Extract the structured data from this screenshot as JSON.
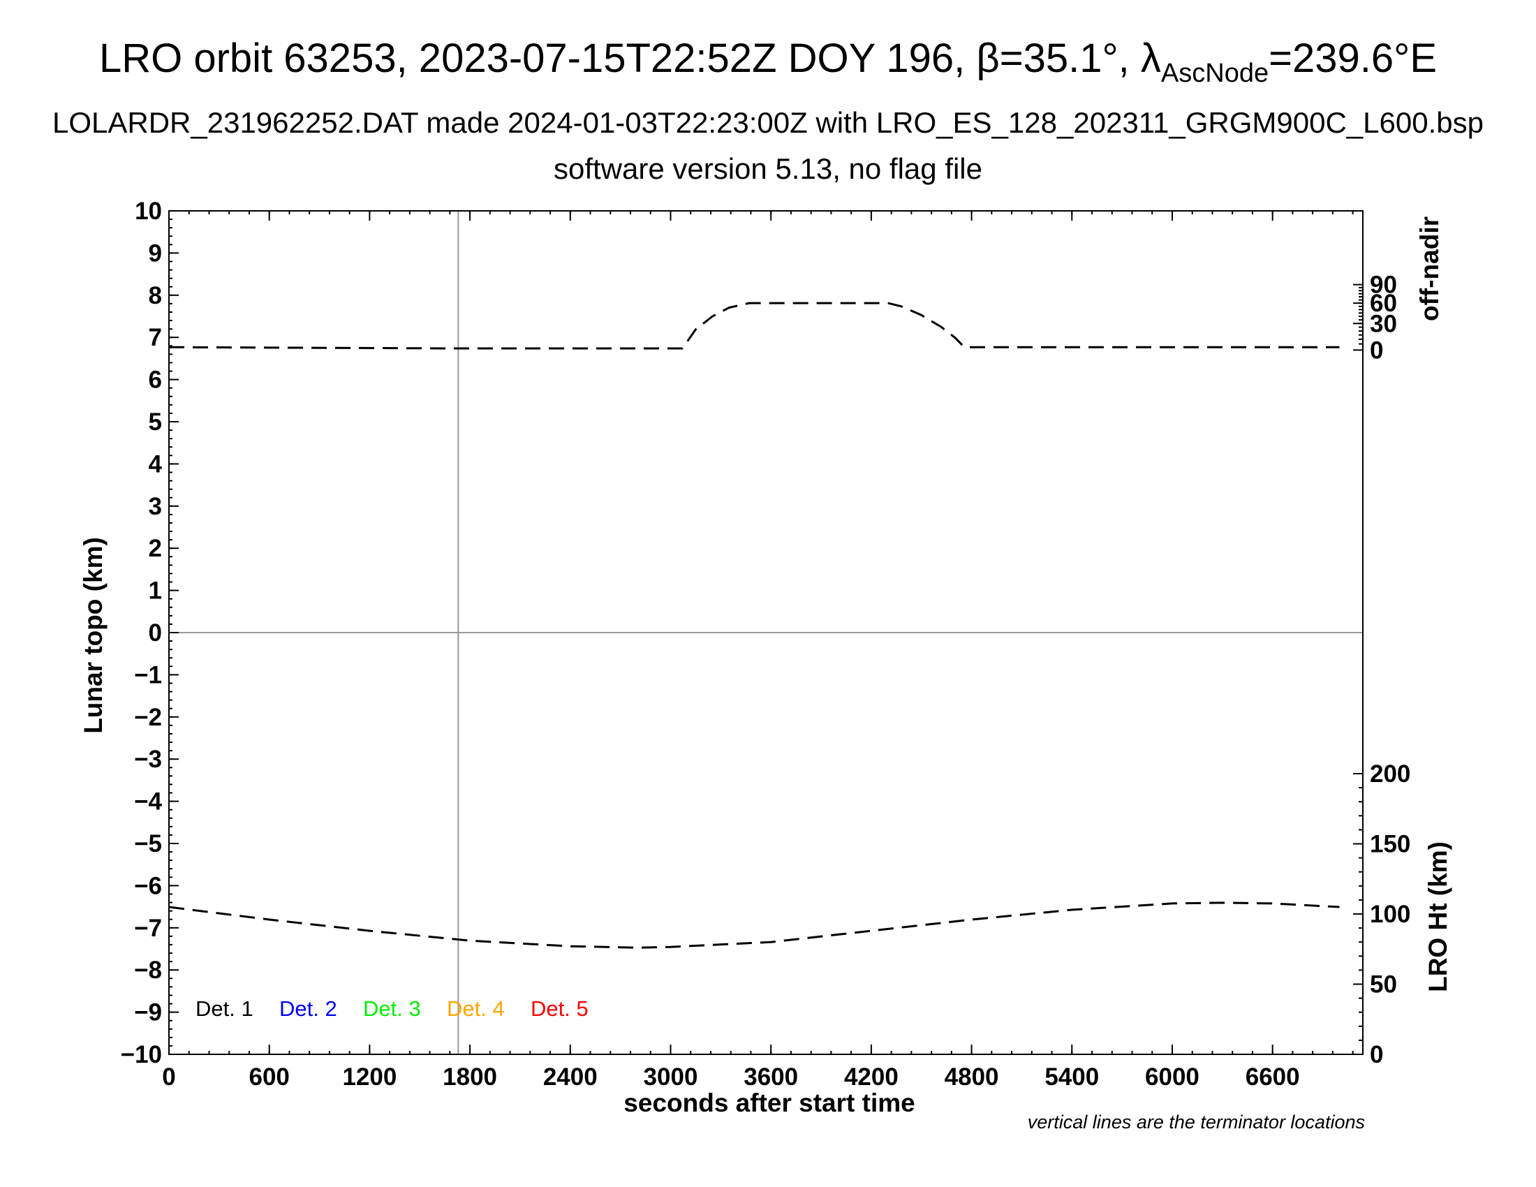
{
  "title": {
    "prefix": "LRO orbit 63253, 2023-07-15T22:52Z DOY 196, β=35.1°, λ",
    "sub": "AscNode",
    "suffix": "=239.6°E"
  },
  "subtitle1": "LOLARDR_231962252.DAT made 2024-01-03T22:23:00Z with LRO_ES_128_202311_GRGM900C_L600.bsp",
  "subtitle2": "software version 5.13, no flag file",
  "footnote": "vertical lines are the terminator locations",
  "chart_data": {
    "type": "line",
    "xlabel": "seconds after start time",
    "xlim": [
      0,
      7140
    ],
    "xticks": [
      0,
      600,
      1200,
      1800,
      2400,
      3000,
      3600,
      4200,
      4800,
      5400,
      6000,
      6600
    ],
    "ylabel_left": "Lunar topo (km)",
    "ylim_left": [
      -10,
      10
    ],
    "yticks_left": [
      10,
      9,
      8,
      7,
      6,
      5,
      4,
      3,
      2,
      1,
      0,
      -1,
      -2,
      -3,
      -4,
      -5,
      -6,
      -7,
      -8,
      -9,
      -10
    ],
    "ylabel_right_top": "off-nadir",
    "yticks_right_top": [
      90,
      60,
      30,
      0
    ],
    "ylabel_right_bottom": "LRO Ht (km)",
    "ylim_right_bottom": [
      0,
      300
    ],
    "yticks_right_bottom": [
      200,
      150,
      100,
      50,
      0
    ],
    "terminator_x": [
      1730
    ],
    "zero_line_y": 0,
    "legend": [
      {
        "label": "Det. 1",
        "color": "#000000"
      },
      {
        "label": "Det. 2",
        "color": "#0000ff"
      },
      {
        "label": "Det. 3",
        "color": "#00ee00"
      },
      {
        "label": "Det. 4",
        "color": "#ffa500"
      },
      {
        "label": "Det. 5",
        "color": "#ff0000"
      }
    ],
    "series": [
      {
        "style": "dashed",
        "axis": "off-nadir",
        "x": [
          0,
          1700,
          3070,
          3090,
          3150,
          3250,
          3350,
          3470,
          4300,
          4380,
          4500,
          4620,
          4700,
          4750,
          4760,
          7000
        ],
        "y": [
          2,
          1,
          1,
          5,
          22,
          40,
          53,
          60,
          60,
          55,
          42,
          25,
          12,
          3,
          2,
          2
        ]
      },
      {
        "style": "dashed",
        "axis": "LRO Ht (km)",
        "x": [
          0,
          600,
          1200,
          1800,
          2400,
          2800,
          3000,
          3600,
          4200,
          4800,
          5400,
          6000,
          6300,
          6600,
          7000
        ],
        "y": [
          105,
          96,
          88,
          81,
          77,
          76,
          76.5,
          80,
          88,
          96,
          103,
          107.5,
          108,
          107.5,
          105
        ]
      }
    ]
  }
}
